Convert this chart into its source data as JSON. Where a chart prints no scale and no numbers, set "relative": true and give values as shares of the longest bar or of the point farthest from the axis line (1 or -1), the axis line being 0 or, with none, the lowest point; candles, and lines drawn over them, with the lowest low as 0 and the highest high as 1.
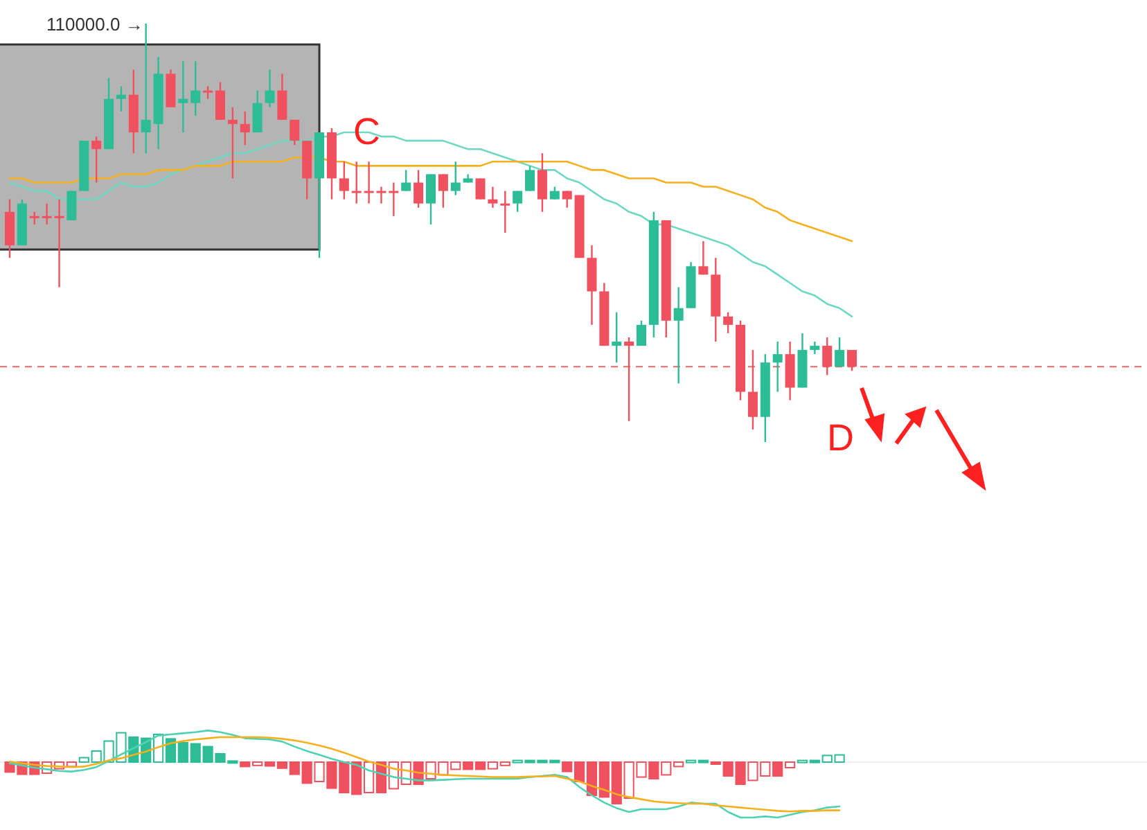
{
  "chart_data": [
    {
      "type": "candlestick",
      "relative": true,
      "categories": [
        null,
        null,
        null,
        null,
        null,
        null,
        null,
        null,
        null,
        null,
        null,
        null,
        null,
        null,
        null,
        null,
        null,
        null,
        null,
        null,
        null,
        null,
        null,
        null,
        null,
        null,
        null,
        null,
        null,
        null,
        null,
        null,
        null,
        null,
        null,
        null,
        null,
        null,
        null,
        null,
        null,
        null,
        null,
        null,
        null,
        null,
        null,
        null,
        null,
        null,
        null,
        null,
        null,
        null,
        null,
        null,
        null,
        null,
        null,
        null,
        null,
        null,
        null,
        null,
        null,
        null,
        null,
        null,
        null
      ],
      "ohlc": [
        [
          0.55,
          0.58,
          0.44,
          0.47
        ],
        [
          0.47,
          0.58,
          0.47,
          0.57
        ],
        [
          0.54,
          0.55,
          0.52,
          0.54
        ],
        [
          0.54,
          0.57,
          0.52,
          0.54
        ],
        [
          0.54,
          0.58,
          0.37,
          0.54
        ],
        [
          0.53,
          0.6,
          0.53,
          0.6
        ],
        [
          0.6,
          0.72,
          0.6,
          0.72
        ],
        [
          0.72,
          0.73,
          0.62,
          0.7
        ],
        [
          0.7,
          0.87,
          0.7,
          0.82
        ],
        [
          0.82,
          0.85,
          0.79,
          0.83
        ],
        [
          0.83,
          0.89,
          0.69,
          0.74
        ],
        [
          0.74,
          1.0,
          0.69,
          0.77
        ],
        [
          0.76,
          0.92,
          0.7,
          0.88
        ],
        [
          0.88,
          0.89,
          0.8,
          0.8
        ],
        [
          0.81,
          0.91,
          0.74,
          0.82
        ],
        [
          0.81,
          0.91,
          0.78,
          0.84
        ],
        [
          0.84,
          0.85,
          0.82,
          0.84
        ],
        [
          0.84,
          0.86,
          0.77,
          0.77
        ],
        [
          0.77,
          0.8,
          0.63,
          0.76
        ],
        [
          0.76,
          0.79,
          0.71,
          0.74
        ],
        [
          0.74,
          0.84,
          0.74,
          0.81
        ],
        [
          0.81,
          0.89,
          0.8,
          0.84
        ],
        [
          0.84,
          0.88,
          0.77,
          0.77
        ],
        [
          0.77,
          0.77,
          0.71,
          0.72
        ],
        [
          0.72,
          0.72,
          0.58,
          0.63
        ],
        [
          0.63,
          0.74,
          0.44,
          0.74
        ],
        [
          0.74,
          0.75,
          0.58,
          0.63
        ],
        [
          0.63,
          0.67,
          0.58,
          0.6
        ],
        [
          0.6,
          0.67,
          0.57,
          0.6
        ],
        [
          0.6,
          0.67,
          0.57,
          0.6
        ],
        [
          0.6,
          0.61,
          0.57,
          0.6
        ],
        [
          0.6,
          0.62,
          0.54,
          0.6
        ],
        [
          0.6,
          0.65,
          0.6,
          0.62
        ],
        [
          0.62,
          0.65,
          0.56,
          0.57
        ],
        [
          0.57,
          0.64,
          0.52,
          0.64
        ],
        [
          0.64,
          0.64,
          0.56,
          0.6
        ],
        [
          0.6,
          0.67,
          0.59,
          0.62
        ],
        [
          0.62,
          0.64,
          0.62,
          0.63
        ],
        [
          0.63,
          0.63,
          0.58,
          0.58
        ],
        [
          0.58,
          0.61,
          0.56,
          0.57
        ],
        [
          0.57,
          0.6,
          0.5,
          0.57
        ],
        [
          0.57,
          0.6,
          0.55,
          0.6
        ],
        [
          0.6,
          0.66,
          0.6,
          0.65
        ],
        [
          0.65,
          0.69,
          0.55,
          0.58
        ],
        [
          0.58,
          0.61,
          0.58,
          0.6
        ],
        [
          0.6,
          0.6,
          0.56,
          0.58
        ],
        [
          0.59,
          0.59,
          0.44,
          0.44
        ],
        [
          0.44,
          0.47,
          0.28,
          0.36
        ],
        [
          0.36,
          0.38,
          0.23,
          0.23
        ],
        [
          0.23,
          0.31,
          0.19,
          0.24
        ],
        [
          0.24,
          0.25,
          0.05,
          0.23
        ],
        [
          0.23,
          0.29,
          0.23,
          0.28
        ],
        [
          0.28,
          0.55,
          0.25,
          0.53
        ],
        [
          0.53,
          0.53,
          0.25,
          0.29
        ],
        [
          0.29,
          0.37,
          0.14,
          0.32
        ],
        [
          0.32,
          0.43,
          0.32,
          0.42
        ],
        [
          0.42,
          0.48,
          0.4,
          0.4
        ],
        [
          0.4,
          0.44,
          0.24,
          0.3
        ],
        [
          0.3,
          0.31,
          0.26,
          0.28
        ],
        [
          0.28,
          0.29,
          0.1,
          0.12
        ],
        [
          0.12,
          0.22,
          0.03,
          0.06
        ],
        [
          0.06,
          0.21,
          0,
          0.19
        ],
        [
          0.19,
          0.24,
          0.12,
          0.21
        ],
        [
          0.21,
          0.24,
          0.1,
          0.13
        ],
        [
          0.13,
          0.26,
          0.13,
          0.22
        ],
        [
          0.22,
          0.24,
          0.21,
          0.23
        ],
        [
          0.23,
          0.25,
          0.16,
          0.18
        ],
        [
          0.18,
          0.25,
          0.18,
          0.22
        ],
        [
          0.22,
          0.22,
          0.17,
          0.18
        ]
      ],
      "series": [
        {
          "type": "line",
          "color": "#6fd8c4",
          "values": [
            0.62,
            0.61,
            0.6,
            0.6,
            0.58,
            0.58,
            0.58,
            0.58,
            0.6,
            0.62,
            0.61,
            0.61,
            0.62,
            0.64,
            0.65,
            0.66,
            0.67,
            0.68,
            0.69,
            0.69,
            0.7,
            0.71,
            0.72,
            0.72,
            0.72,
            0.73,
            0.73,
            0.74,
            0.74,
            0.74,
            0.73,
            0.73,
            0.72,
            0.72,
            0.72,
            0.72,
            0.71,
            0.7,
            0.7,
            0.69,
            0.68,
            0.67,
            0.66,
            0.65,
            0.65,
            0.63,
            0.62,
            0.6,
            0.58,
            0.57,
            0.55,
            0.54,
            0.52,
            0.52,
            0.51,
            0.5,
            0.49,
            0.48,
            0.47,
            0.45,
            0.43,
            0.42,
            0.4,
            0.38,
            0.36,
            0.35,
            0.33,
            0.32,
            0.3
          ]
        },
        {
          "type": "line",
          "color": "#f6b01e",
          "values": [
            0.63,
            0.63,
            0.62,
            0.62,
            0.62,
            0.62,
            0.63,
            0.63,
            0.63,
            0.64,
            0.64,
            0.64,
            0.65,
            0.65,
            0.65,
            0.66,
            0.66,
            0.66,
            0.67,
            0.67,
            0.67,
            0.67,
            0.67,
            0.68,
            0.68,
            0.68,
            0.67,
            0.67,
            0.66,
            0.66,
            0.66,
            0.66,
            0.66,
            0.66,
            0.66,
            0.66,
            0.66,
            0.66,
            0.66,
            0.67,
            0.67,
            0.67,
            0.67,
            0.67,
            0.67,
            0.67,
            0.66,
            0.65,
            0.65,
            0.64,
            0.63,
            0.63,
            0.63,
            0.62,
            0.62,
            0.62,
            0.61,
            0.61,
            0.6,
            0.59,
            0.58,
            0.56,
            0.55,
            0.53,
            0.52,
            0.51,
            0.5,
            0.49,
            0.48
          ]
        }
      ],
      "ref_lines": [
        {
          "axis": "y",
          "value": 0.18,
          "color": "#e06a6a",
          "line_style": "dashed"
        }
      ],
      "annotations": [
        "110000.0 →",
        "C",
        "D"
      ]
    },
    {
      "type": "bar",
      "relative": true,
      "categories": [
        null,
        null,
        null,
        null,
        null,
        null,
        null,
        null,
        null,
        null,
        null,
        null,
        null,
        null,
        null,
        null,
        null,
        null,
        null,
        null,
        null,
        null,
        null,
        null,
        null,
        null,
        null,
        null,
        null,
        null,
        null,
        null,
        null,
        null,
        null,
        null,
        null,
        null,
        null,
        null,
        null,
        null,
        null,
        null,
        null,
        null,
        null,
        null,
        null,
        null,
        null,
        null,
        null,
        null,
        null,
        null,
        null,
        null,
        null,
        null,
        null,
        null,
        null,
        null,
        null,
        null,
        null,
        null,
        null
      ],
      "series": [
        {
          "type": "bar",
          "colors": [
            "#f0515e",
            "#f0515e",
            "#f0515e",
            "#f0515e",
            "#f0515e",
            "#f0515e",
            "#2dbd96",
            "#2dbd96",
            "#2dbd96",
            "#2dbd96",
            "#2dbd96",
            "#2dbd96",
            "#2dbd96",
            "#2dbd96",
            "#2dbd96",
            "#2dbd96",
            "#2dbd96",
            "#2dbd96",
            "#2dbd96",
            "#f0515e",
            "#f0515e",
            "#f0515e",
            "#f0515e",
            "#f0515e",
            "#f0515e",
            "#f0515e",
            "#f0515e",
            "#f0515e",
            "#f0515e",
            "#f0515e",
            "#f0515e",
            "#f0515e",
            "#f0515e",
            "#f0515e",
            "#f0515e",
            "#f0515e",
            "#f0515e",
            "#f0515e",
            "#f0515e",
            "#f0515e",
            "#f0515e",
            "#2dbd96",
            "#2dbd96",
            "#2dbd96",
            "#2dbd96",
            "#f0515e",
            "#f0515e",
            "#f0515e",
            "#f0515e",
            "#f0515e",
            "#f0515e",
            "#f0515e",
            "#f0515e",
            "#f0515e",
            "#f0515e",
            "#2dbd96",
            "#2dbd96",
            "#f0515e",
            "#f0515e",
            "#f0515e",
            "#f0515e",
            "#f0515e",
            "#f0515e",
            "#f0515e",
            "#2dbd96",
            "#2dbd96",
            "#2dbd96",
            "#2dbd96",
            null
          ],
          "values": [
            -0.18,
            -0.22,
            -0.22,
            -0.2,
            -0.12,
            -0.08,
            0.08,
            0.2,
            0.38,
            0.53,
            0.45,
            0.43,
            0.5,
            0.42,
            0.35,
            0.33,
            0.28,
            0.15,
            0.02,
            -0.08,
            -0.06,
            -0.07,
            -0.11,
            -0.22,
            -0.38,
            -0.35,
            -0.47,
            -0.55,
            -0.58,
            -0.55,
            -0.55,
            -0.48,
            -0.4,
            -0.4,
            -0.3,
            -0.23,
            -0.13,
            -0.13,
            -0.13,
            -0.12,
            -0.06,
            0.03,
            0.03,
            0.03,
            0.03,
            -0.17,
            -0.35,
            -0.6,
            -0.63,
            -0.75,
            -0.65,
            -0.27,
            -0.3,
            -0.23,
            -0.08,
            0.03,
            0.03,
            -0.03,
            -0.25,
            -0.4,
            -0.33,
            -0.25,
            -0.25,
            -0.1,
            0.03,
            0.03,
            0.12,
            0.13,
            null
          ]
        },
        {
          "type": "line",
          "color": "#4fd1b4",
          "values": [
            -0.02,
            -0.06,
            -0.1,
            -0.13,
            -0.16,
            -0.17,
            -0.14,
            -0.09,
            0.02,
            0.14,
            0.25,
            0.36,
            0.48,
            0.5,
            0.52,
            0.54,
            0.57,
            0.54,
            0.49,
            0.43,
            0.42,
            0.41,
            0.37,
            0.28,
            0.2,
            0.13,
            0.06,
            0,
            -0.05,
            -0.15,
            -0.21,
            -0.27,
            -0.3,
            -0.33,
            -0.33,
            -0.32,
            -0.31,
            -0.3,
            -0.3,
            -0.3,
            -0.3,
            -0.3,
            -0.27,
            -0.25,
            -0.23,
            -0.27,
            -0.45,
            -0.6,
            -0.73,
            -0.83,
            -0.9,
            -0.85,
            -0.85,
            -0.85,
            -0.8,
            -0.73,
            -0.75,
            -0.75,
            -0.9,
            -1.0,
            -1.0,
            -0.98,
            -1.0,
            -0.95,
            -0.9,
            -0.87,
            -0.82,
            -0.8,
            null
          ]
        },
        {
          "type": "line",
          "color": "#f6b01e",
          "values": [
            0.01,
            -0.02,
            -0.05,
            -0.07,
            -0.08,
            -0.09,
            -0.08,
            -0.03,
            0.03,
            0.07,
            0.13,
            0.19,
            0.27,
            0.34,
            0.38,
            0.41,
            0.43,
            0.45,
            0.45,
            0.45,
            0.45,
            0.44,
            0.42,
            0.39,
            0.35,
            0.3,
            0.24,
            0.17,
            0.09,
            0.01,
            -0.05,
            -0.12,
            -0.15,
            -0.19,
            -0.21,
            -0.23,
            -0.24,
            -0.25,
            -0.26,
            -0.27,
            -0.27,
            -0.27,
            -0.26,
            -0.26,
            -0.25,
            -0.3,
            -0.35,
            -0.43,
            -0.5,
            -0.58,
            -0.63,
            -0.67,
            -0.71,
            -0.73,
            -0.74,
            -0.75,
            -0.75,
            -0.78,
            -0.8,
            -0.82,
            -0.84,
            -0.86,
            -0.88,
            -0.89,
            -0.88,
            -0.88,
            -0.87,
            -0.87,
            null
          ]
        }
      ]
    }
  ]
}
